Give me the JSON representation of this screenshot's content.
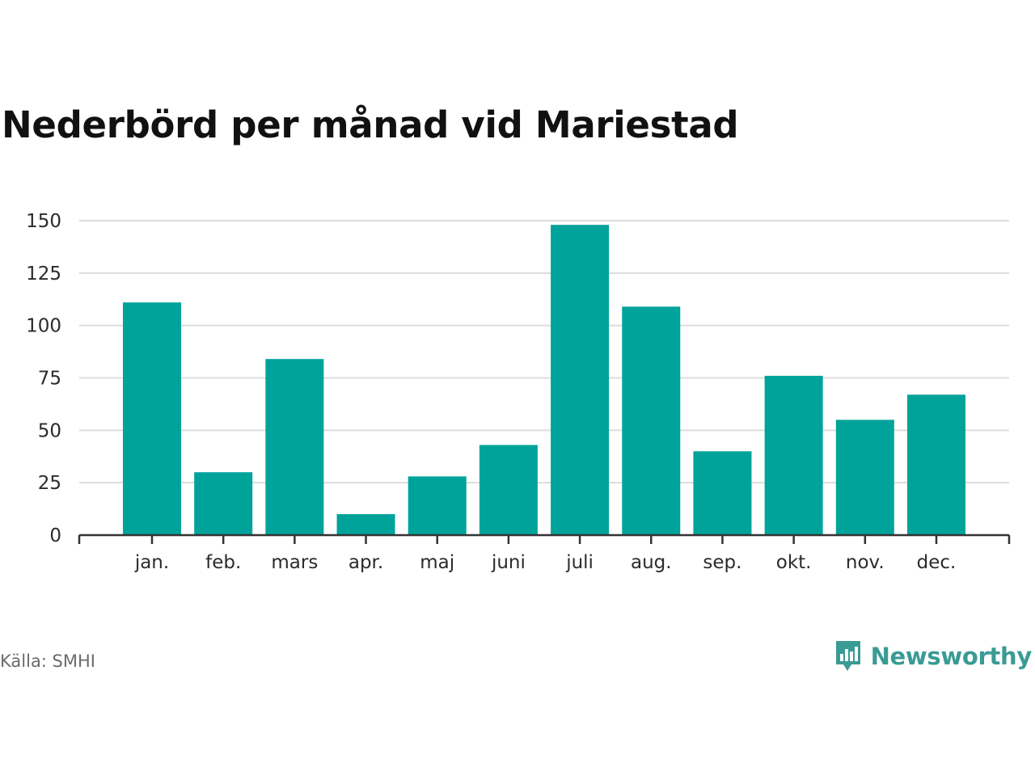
{
  "title": "Nederbörd per månad vid Mariestad",
  "source": "Källa: SMHI",
  "brand": {
    "name": "Newsworthy",
    "icon": "newsworthy-logo-icon",
    "color": "#3a9b94"
  },
  "colors": {
    "bar": "#00a39a",
    "grid": "#dcdcdc",
    "axis": "#333333"
  },
  "chart_data": {
    "type": "bar",
    "title": "Nederbörd per månad vid Mariestad",
    "xlabel": "",
    "ylabel": "",
    "categories": [
      "jan.",
      "feb.",
      "mars",
      "apr.",
      "maj",
      "juni",
      "juli",
      "aug.",
      "sep.",
      "okt.",
      "nov.",
      "dec."
    ],
    "values": [
      111,
      30,
      84,
      10,
      28,
      43,
      148,
      109,
      40,
      76,
      55,
      67
    ],
    "ylim": [
      0,
      150
    ],
    "yticks": [
      0,
      25,
      50,
      75,
      100,
      125,
      150
    ],
    "grid": true,
    "legend": "none"
  }
}
